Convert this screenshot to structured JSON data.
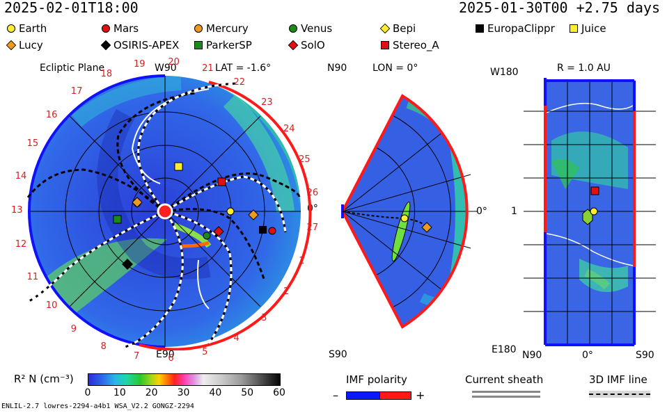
{
  "header": {
    "left_time": "2025-02-01T18:00",
    "right_time": "2025-01-30T00 +2.75 days"
  },
  "legend": {
    "items": [
      {
        "name": "Earth",
        "shape": "circle",
        "color": "#ffee33"
      },
      {
        "name": "Mars",
        "shape": "circle",
        "color": "#dd1111"
      },
      {
        "name": "Mercury",
        "shape": "circle",
        "color": "#ee9922"
      },
      {
        "name": "Venus",
        "shape": "circle",
        "color": "#1a8a1a"
      },
      {
        "name": "Bepi",
        "shape": "diamond",
        "color": "#ffee33"
      },
      {
        "name": "EuropaClippr",
        "shape": "square",
        "color": "#000000"
      },
      {
        "name": "Juice",
        "shape": "square",
        "color": "#ffee33"
      },
      {
        "name": "Lucy",
        "shape": "diamond",
        "color": "#ee9922"
      },
      {
        "name": "OSIRIS-APEX",
        "shape": "diamond",
        "color": "#000000"
      },
      {
        "name": "ParkerSP",
        "shape": "square",
        "color": "#1a8a1a"
      },
      {
        "name": "SolO",
        "shape": "diamond",
        "color": "#dd1111"
      },
      {
        "name": "Stereo_A",
        "shape": "square",
        "color": "#dd1111"
      }
    ]
  },
  "panel_ecliptic": {
    "title": "Ecliptic Plane",
    "top_label": "W90",
    "lat_label": "LAT = -1.6°",
    "bottom_label": "E90",
    "zero_label": "0°",
    "sectors": [
      "19",
      "20",
      "21",
      "22",
      "23",
      "24",
      "25",
      "26",
      "27",
      "1",
      "2",
      "3",
      "4",
      "5",
      "6",
      "7",
      "8",
      "9",
      "10",
      "11",
      "12",
      "13",
      "14",
      "15",
      "16",
      "17",
      "18"
    ]
  },
  "panel_meridional": {
    "top_label": "N90",
    "lon_label": "LON = 0°",
    "bottom_label": "S90",
    "zero_label": "0°"
  },
  "panel_sphere": {
    "title": "R = 1.0 AU",
    "top_left": "W180",
    "left_mid": "1",
    "bottom_left": "E180",
    "bottom_n": "N90",
    "bottom_zero": "0°",
    "bottom_s": "S90"
  },
  "colorbar": {
    "label": "R² N (cm⁻³)",
    "ticks": [
      "0",
      "10",
      "20",
      "30",
      "40",
      "50",
      "60"
    ],
    "colors": {
      "low": "#2b2bd9",
      "mid": "#ff2020",
      "high": "#050505"
    }
  },
  "imf_polarity": {
    "label": "IMF polarity",
    "minus": "–",
    "plus": "+",
    "colors": {
      "negative": "#0a1aff",
      "positive": "#ff1a1a"
    }
  },
  "current_sheath": {
    "label": "Current sheath"
  },
  "imf_line": {
    "label": "3D IMF line"
  },
  "footer": {
    "model_text": "ENLIL-2.7 lowres-2294-a4b1 WSA_V2.2 GONGZ-2294"
  }
}
